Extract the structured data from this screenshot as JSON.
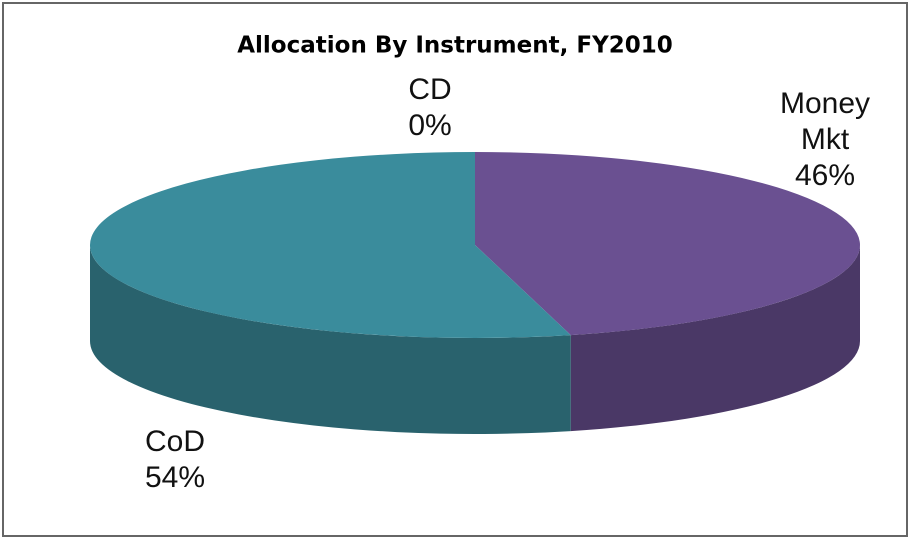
{
  "chart_data": {
    "type": "pie",
    "title": "Allocation By Instrument, FY2010",
    "categories": [
      "CD",
      "Money Mkt",
      "CoD"
    ],
    "values": [
      0,
      46,
      54
    ],
    "value_labels": [
      "0%",
      "46%",
      "54%"
    ],
    "colors": [
      "#c0504d",
      "#6a5091",
      "#3a8c9c"
    ]
  }
}
